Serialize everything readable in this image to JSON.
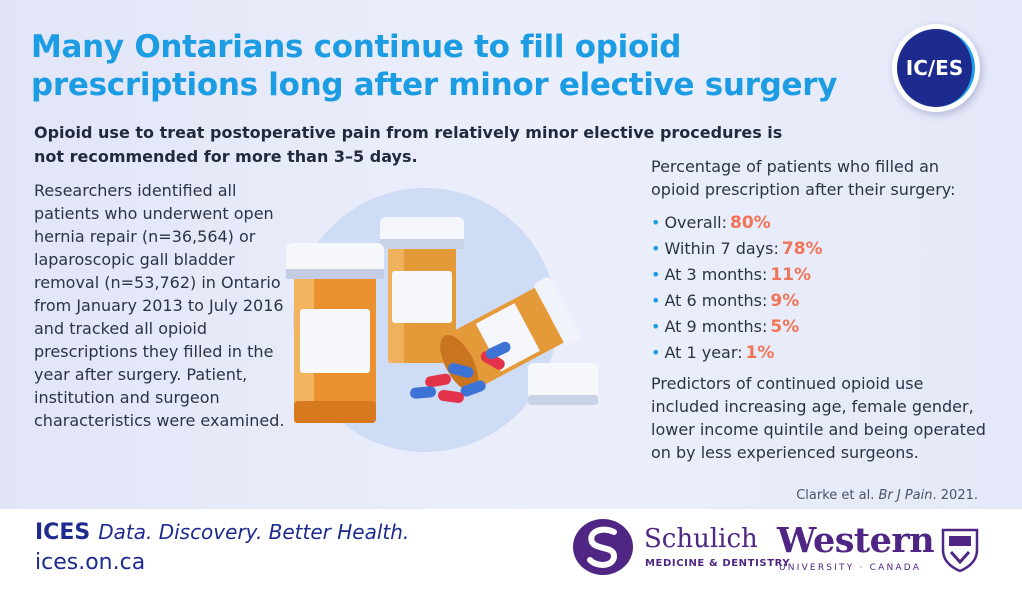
{
  "header": {
    "title": "Many Ontarians continue to fill opioid prescriptions long after minor elective surgery",
    "logo_text": "IC/ES"
  },
  "subtitle": "Opioid use to treat postoperative pain from relatively minor elective procedures is not recommended for more than 3–5 days.",
  "body": "Researchers identified all patients who underwent open hernia repair (n=36,564) or laparoscopic gall bladder removal (n=53,762) in Ontario from January 2013 to July 2016 and tracked all opioid prescriptions they filled in the year after surgery. Patient, institution and surgeon characteristics were examined.",
  "stats": {
    "heading": "Percentage of patients who filled an opioid prescription after their surgery:",
    "items": [
      {
        "label": "Overall:",
        "value": "80%"
      },
      {
        "label": "Within 7 days:",
        "value": "78%"
      },
      {
        "label": "At 3 months:",
        "value": "11%"
      },
      {
        "label": "At 6 months:",
        "value": "9%"
      },
      {
        "label": "At 9 months:",
        "value": "5%"
      },
      {
        "label": "At 1 year:",
        "value": "1%"
      }
    ]
  },
  "predictors": "Predictors of continued opioid use included increasing age, female gender, lower income quintile and being operated on by less experienced surgeons.",
  "citation": {
    "authors": "Clarke et al.",
    "journal": "Br J Pain",
    "year": ". 2021."
  },
  "footer": {
    "brand": "ICES",
    "tagline": "Data. Discovery. Better Health.",
    "url": "ices.on.ca",
    "schulich_name": "Schulich",
    "schulich_sub": "MEDICINE & DENTISTRY",
    "western_name": "Western",
    "western_sub": "UNIVERSITY · CANADA"
  },
  "colors": {
    "title": "#1b9ce3",
    "highlight": "#f07457",
    "ices_navy": "#1d2b8f",
    "western_purple": "#4f2683"
  },
  "icons": [
    "pill-bottles-illustration",
    "schulich-logo-icon",
    "western-crest-icon"
  ]
}
